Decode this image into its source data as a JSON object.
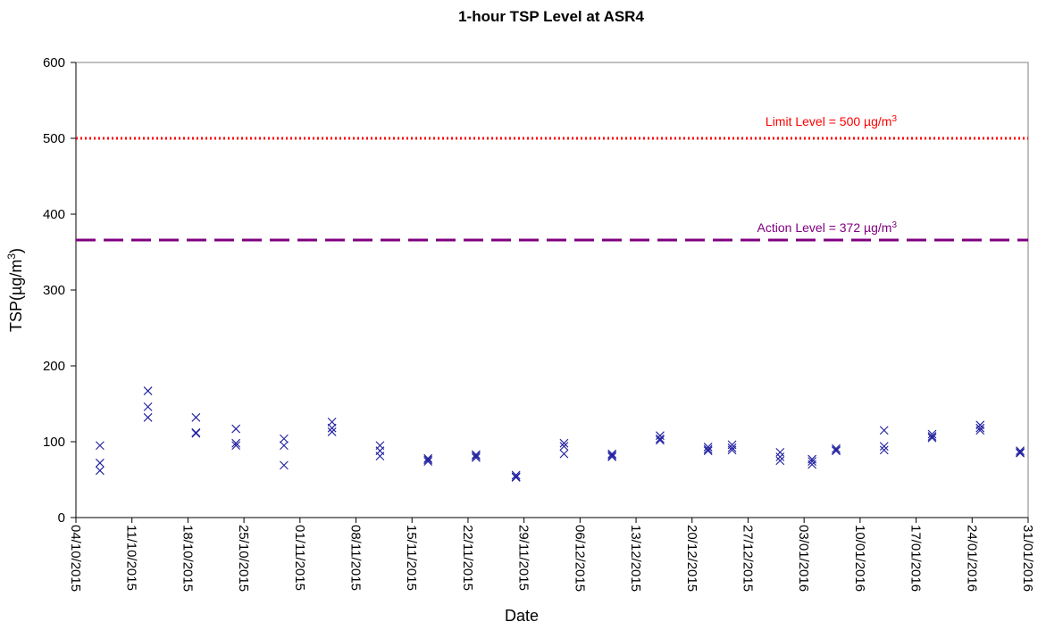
{
  "chart_data": {
    "type": "scatter",
    "title": "1-hour TSP Level at ASR4",
    "xlabel": "Date",
    "ylabel_main": "TSP(µg/m",
    "ylabel_sup": "3",
    "ylabel_close": ")",
    "ylim": [
      0,
      600
    ],
    "yticks": [
      "0",
      "100",
      "200",
      "300",
      "400",
      "500",
      "600"
    ],
    "xlim": [
      "2015-10-04",
      "2016-01-31"
    ],
    "xticks": [
      "04/10/2015",
      "11/10/2015",
      "18/10/2015",
      "25/10/2015",
      "01/11/2015",
      "08/11/2015",
      "15/11/2015",
      "22/11/2015",
      "29/11/2015",
      "06/12/2015",
      "13/12/2015",
      "20/12/2015",
      "27/12/2015",
      "03/01/2016",
      "10/01/2016",
      "17/01/2016",
      "24/01/2016",
      "31/01/2016"
    ],
    "grid": false,
    "marker": "x",
    "marker_color": "#1f1f9f",
    "reference_lines": [
      {
        "label_main": "Limit Level = 500 µg/m",
        "label_sup": "3",
        "y": 500,
        "style": "dotted",
        "color": "#ff0000"
      },
      {
        "label_main": "Action Level = 372 µg/m",
        "label_sup": "3",
        "y": 372,
        "style": "dashed",
        "color": "#800080"
      }
    ],
    "points": [
      {
        "x": "2015-10-07",
        "y": 95
      },
      {
        "x": "2015-10-07",
        "y": 72
      },
      {
        "x": "2015-10-07",
        "y": 62
      },
      {
        "x": "2015-10-13",
        "y": 167
      },
      {
        "x": "2015-10-13",
        "y": 146
      },
      {
        "x": "2015-10-13",
        "y": 132
      },
      {
        "x": "2015-10-19",
        "y": 132
      },
      {
        "x": "2015-10-19",
        "y": 112
      },
      {
        "x": "2015-10-19",
        "y": 111
      },
      {
        "x": "2015-10-24",
        "y": 117
      },
      {
        "x": "2015-10-24",
        "y": 98
      },
      {
        "x": "2015-10-24",
        "y": 95
      },
      {
        "x": "2015-10-30",
        "y": 104
      },
      {
        "x": "2015-10-30",
        "y": 95
      },
      {
        "x": "2015-10-30",
        "y": 69
      },
      {
        "x": "2015-11-05",
        "y": 126
      },
      {
        "x": "2015-11-05",
        "y": 118
      },
      {
        "x": "2015-11-05",
        "y": 113
      },
      {
        "x": "2015-11-11",
        "y": 95
      },
      {
        "x": "2015-11-11",
        "y": 88
      },
      {
        "x": "2015-11-11",
        "y": 81
      },
      {
        "x": "2015-11-17",
        "y": 78
      },
      {
        "x": "2015-11-17",
        "y": 76
      },
      {
        "x": "2015-11-17",
        "y": 74
      },
      {
        "x": "2015-11-23",
        "y": 83
      },
      {
        "x": "2015-11-23",
        "y": 81
      },
      {
        "x": "2015-11-23",
        "y": 79
      },
      {
        "x": "2015-11-28",
        "y": 56
      },
      {
        "x": "2015-11-28",
        "y": 54
      },
      {
        "x": "2015-11-28",
        "y": 53
      },
      {
        "x": "2015-12-04",
        "y": 98
      },
      {
        "x": "2015-12-04",
        "y": 94
      },
      {
        "x": "2015-12-04",
        "y": 84
      },
      {
        "x": "2015-12-10",
        "y": 84
      },
      {
        "x": "2015-12-10",
        "y": 82
      },
      {
        "x": "2015-12-10",
        "y": 80
      },
      {
        "x": "2015-12-16",
        "y": 108
      },
      {
        "x": "2015-12-16",
        "y": 104
      },
      {
        "x": "2015-12-16",
        "y": 102
      },
      {
        "x": "2015-12-22",
        "y": 93
      },
      {
        "x": "2015-12-22",
        "y": 90
      },
      {
        "x": "2015-12-22",
        "y": 88
      },
      {
        "x": "2015-12-25",
        "y": 96
      },
      {
        "x": "2015-12-25",
        "y": 92
      },
      {
        "x": "2015-12-25",
        "y": 89
      },
      {
        "x": "2015-12-31",
        "y": 86
      },
      {
        "x": "2015-12-31",
        "y": 80
      },
      {
        "x": "2015-12-31",
        "y": 75
      },
      {
        "x": "2016-01-04",
        "y": 77
      },
      {
        "x": "2016-01-04",
        "y": 74
      },
      {
        "x": "2016-01-04",
        "y": 70
      },
      {
        "x": "2016-01-07",
        "y": 91
      },
      {
        "x": "2016-01-07",
        "y": 89
      },
      {
        "x": "2016-01-07",
        "y": 88
      },
      {
        "x": "2016-01-13",
        "y": 115
      },
      {
        "x": "2016-01-13",
        "y": 94
      },
      {
        "x": "2016-01-13",
        "y": 89
      },
      {
        "x": "2016-01-19",
        "y": 110
      },
      {
        "x": "2016-01-19",
        "y": 107
      },
      {
        "x": "2016-01-19",
        "y": 105
      },
      {
        "x": "2016-01-25",
        "y": 122
      },
      {
        "x": "2016-01-25",
        "y": 118
      },
      {
        "x": "2016-01-25",
        "y": 115
      },
      {
        "x": "2016-01-30",
        "y": 88
      },
      {
        "x": "2016-01-30",
        "y": 86
      },
      {
        "x": "2016-01-30",
        "y": 85
      }
    ]
  }
}
